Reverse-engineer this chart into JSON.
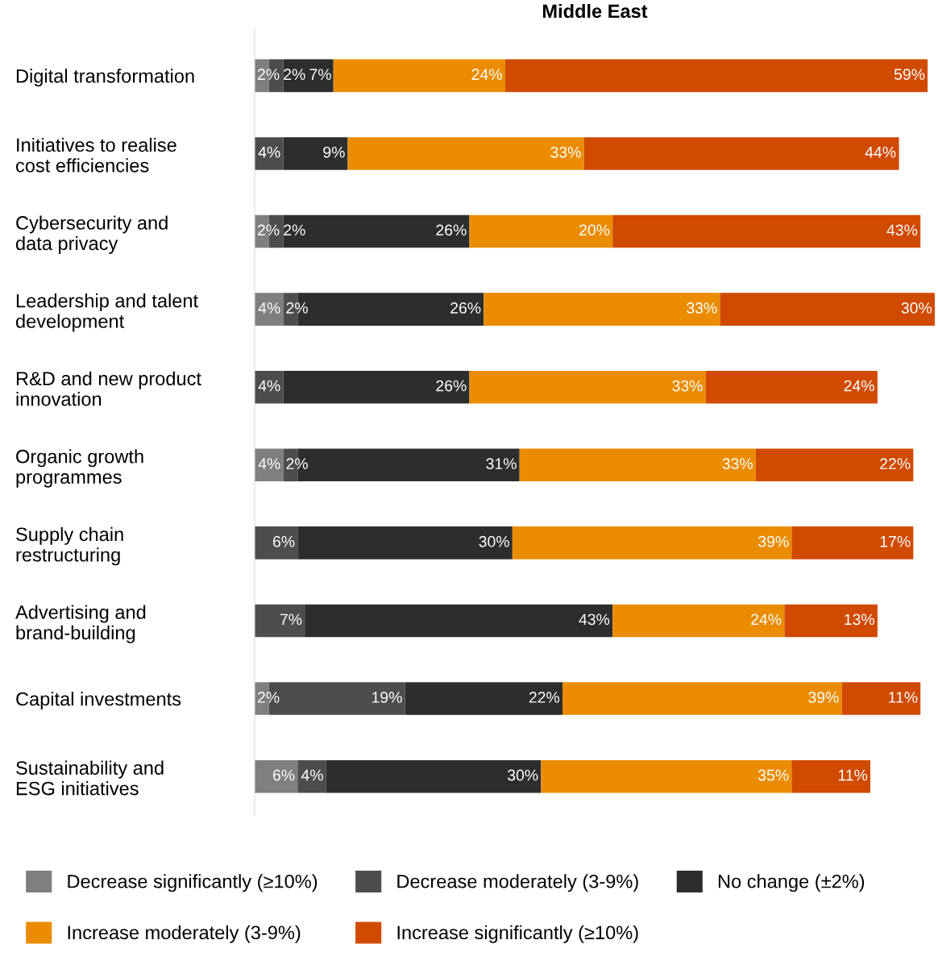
{
  "chart_data": {
    "type": "bar",
    "orientation": "horizontal",
    "stacked": true,
    "title": "Middle East",
    "categories": [
      "Digital transformation",
      "Initiatives to realise\ncost efficiencies",
      "Cybersecurity and\ndata privacy",
      "Leadership and talent\ndevelopment",
      "R&D and new product\ninnovation",
      "Organic growth\nprogrammes",
      "Supply chain\nrestructuring",
      "Advertising and\nbrand-building",
      "Capital investments",
      "Sustainability and\nESG initiatives"
    ],
    "tick_labels": "y",
    "grid": false,
    "legend": "bottom",
    "series": [
      {
        "name": "Decrease significantly (≥10%)",
        "color": "#7f7f7f",
        "values": [
          2,
          null,
          2,
          4,
          null,
          4,
          null,
          null,
          2,
          6
        ],
        "value_labels": [
          "2%",
          null,
          "2%",
          "4%",
          null,
          "4%",
          null,
          null,
          "2%",
          "6%"
        ]
      },
      {
        "name": "Decrease moderately (3-9%)",
        "color": "#4d4d4d",
        "values": [
          2,
          4,
          2,
          2,
          4,
          2,
          6,
          7,
          19,
          4
        ],
        "value_labels": [
          "2%",
          "4%",
          "2%",
          "2%",
          "4%",
          "2%",
          "6%",
          "7%",
          "19%",
          "4%"
        ]
      },
      {
        "name": "No change (±2%)",
        "color": "#2d2d2d",
        "values": [
          7,
          9,
          26,
          26,
          26,
          31,
          30,
          43,
          22,
          30
        ],
        "value_labels": [
          "7%",
          "9%",
          "26%",
          "26%",
          "26%",
          "31%",
          "30%",
          "43%",
          "22%",
          "30%"
        ]
      },
      {
        "name": "Increase moderately (3-9%)",
        "color": "#eb8c00",
        "values": [
          24,
          33,
          20,
          33,
          33,
          33,
          39,
          24,
          39,
          35
        ],
        "value_labels": [
          "24%",
          "33%",
          "20%",
          "33%",
          "33%",
          "33%",
          "39%",
          "24%",
          "39%",
          "35%"
        ]
      },
      {
        "name": "Increase significantly (≥10%)",
        "color": "#d04a02",
        "values": [
          59,
          44,
          43,
          30,
          24,
          22,
          17,
          13,
          11,
          11
        ],
        "value_labels": [
          "59%",
          "44%",
          "43%",
          "30%",
          "24%",
          "22%",
          "17%",
          "13%",
          "11%",
          "11%"
        ]
      }
    ]
  }
}
